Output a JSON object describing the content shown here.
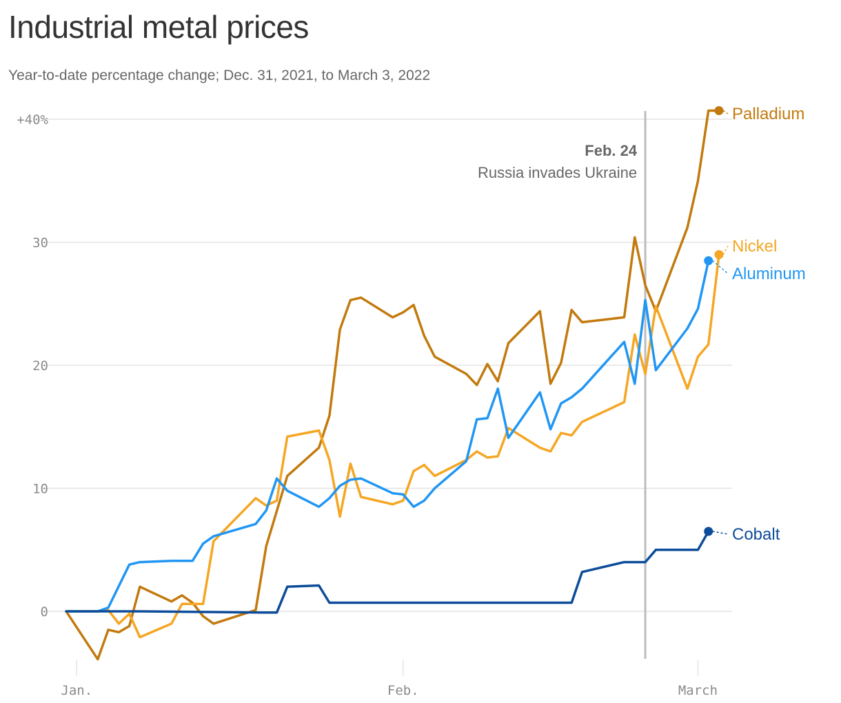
{
  "title": "Industrial metal prices",
  "subtitle": "Year-to-date percentage change; Dec. 31, 2021, to March 3, 2022",
  "colors": {
    "palladium": "#c27a0e",
    "nickel": "#f5a623",
    "aluminum": "#2196f3",
    "cobalt": "#0d4c9a",
    "grid": "#e3e3e3",
    "event_line": "#bdbdbd"
  },
  "chart_data": {
    "type": "line",
    "title": "Industrial metal prices",
    "subtitle": "Year-to-date percentage change; Dec. 31, 2021, to March 3, 2022",
    "ylim": [
      -4,
      40
    ],
    "yticks": [
      0,
      10,
      20,
      30,
      40
    ],
    "ytick_labels": [
      "0",
      "10",
      "20",
      "30",
      "+40%"
    ],
    "xlim": [
      "2021-12-31",
      "2022-03-03"
    ],
    "xticks": [
      "2022-01-01",
      "2022-02-01",
      "2022-03-01"
    ],
    "xtick_labels": [
      "Jan.",
      "Feb.",
      "March"
    ],
    "grid": true,
    "annotation": {
      "date": "2022-02-24",
      "label_date": "Feb. 24",
      "label_text": "Russia invades Ukraine"
    },
    "series": [
      {
        "name": "Palladium",
        "color": "#c27a0e",
        "points": [
          [
            "2021-12-31",
            0
          ],
          [
            "2022-01-03",
            -3.9
          ],
          [
            "2022-01-04",
            -1.5
          ],
          [
            "2022-01-05",
            -1.7
          ],
          [
            "2022-01-06",
            -1.2
          ],
          [
            "2022-01-07",
            2.0
          ],
          [
            "2022-01-10",
            0.8
          ],
          [
            "2022-01-11",
            1.3
          ],
          [
            "2022-01-12",
            0.7
          ],
          [
            "2022-01-13",
            -0.4
          ],
          [
            "2022-01-14",
            -1.0
          ],
          [
            "2022-01-18",
            0.1
          ],
          [
            "2022-01-19",
            5.3
          ],
          [
            "2022-01-21",
            11.0
          ],
          [
            "2022-01-24",
            13.3
          ],
          [
            "2022-01-25",
            15.9
          ],
          [
            "2022-01-26",
            22.9
          ],
          [
            "2022-01-27",
            25.3
          ],
          [
            "2022-01-28",
            25.5
          ],
          [
            "2022-01-31",
            23.9
          ],
          [
            "2022-02-01",
            24.3
          ],
          [
            "2022-02-02",
            24.9
          ],
          [
            "2022-02-03",
            22.4
          ],
          [
            "2022-02-04",
            20.7
          ],
          [
            "2022-02-07",
            19.3
          ],
          [
            "2022-02-08",
            18.4
          ],
          [
            "2022-02-09",
            20.1
          ],
          [
            "2022-02-10",
            18.7
          ],
          [
            "2022-02-11",
            21.8
          ],
          [
            "2022-02-14",
            24.4
          ],
          [
            "2022-02-15",
            18.5
          ],
          [
            "2022-02-16",
            20.2
          ],
          [
            "2022-02-17",
            24.5
          ],
          [
            "2022-02-18",
            23.5
          ],
          [
            "2022-02-22",
            23.9
          ],
          [
            "2022-02-23",
            30.4
          ],
          [
            "2022-02-24",
            26.5
          ],
          [
            "2022-02-25",
            24.4
          ],
          [
            "2022-02-28",
            31.2
          ],
          [
            "2022-03-01",
            35.0
          ],
          [
            "2022-03-02",
            40.7
          ],
          [
            "2022-03-03",
            40.7
          ]
        ]
      },
      {
        "name": "Nickel",
        "color": "#f5a623",
        "points": [
          [
            "2021-12-31",
            0
          ],
          [
            "2022-01-03",
            0
          ],
          [
            "2022-01-04",
            0.1
          ],
          [
            "2022-01-05",
            -1.0
          ],
          [
            "2022-01-06",
            -0.2
          ],
          [
            "2022-01-07",
            -2.1
          ],
          [
            "2022-01-10",
            -1.0
          ],
          [
            "2022-01-11",
            0.6
          ],
          [
            "2022-01-12",
            0.6
          ],
          [
            "2022-01-13",
            0.6
          ],
          [
            "2022-01-14",
            5.7
          ],
          [
            "2022-01-18",
            9.2
          ],
          [
            "2022-01-19",
            8.6
          ],
          [
            "2022-01-20",
            9.0
          ],
          [
            "2022-01-21",
            14.2
          ],
          [
            "2022-01-24",
            14.7
          ],
          [
            "2022-01-25",
            12.3
          ],
          [
            "2022-01-26",
            7.7
          ],
          [
            "2022-01-27",
            12.0
          ],
          [
            "2022-01-28",
            9.3
          ],
          [
            "2022-01-31",
            8.7
          ],
          [
            "2022-02-01",
            9.0
          ],
          [
            "2022-02-02",
            11.4
          ],
          [
            "2022-02-03",
            11.9
          ],
          [
            "2022-02-04",
            11.0
          ],
          [
            "2022-02-07",
            12.3
          ],
          [
            "2022-02-08",
            13.0
          ],
          [
            "2022-02-09",
            12.5
          ],
          [
            "2022-02-10",
            12.6
          ],
          [
            "2022-02-11",
            14.9
          ],
          [
            "2022-02-14",
            13.3
          ],
          [
            "2022-02-15",
            13.0
          ],
          [
            "2022-02-16",
            14.5
          ],
          [
            "2022-02-17",
            14.3
          ],
          [
            "2022-02-18",
            15.4
          ],
          [
            "2022-02-22",
            17.0
          ],
          [
            "2022-02-23",
            22.5
          ],
          [
            "2022-02-24",
            19.3
          ],
          [
            "2022-02-25",
            24.8
          ],
          [
            "2022-02-28",
            18.1
          ],
          [
            "2022-03-01",
            20.7
          ],
          [
            "2022-03-02",
            21.7
          ],
          [
            "2022-03-03",
            29.0
          ]
        ]
      },
      {
        "name": "Aluminum",
        "color": "#2196f3",
        "points": [
          [
            "2021-12-31",
            0
          ],
          [
            "2022-01-03",
            0
          ],
          [
            "2022-01-04",
            0.3
          ],
          [
            "2022-01-06",
            3.8
          ],
          [
            "2022-01-07",
            4.0
          ],
          [
            "2022-01-10",
            4.1
          ],
          [
            "2022-01-12",
            4.1
          ],
          [
            "2022-01-13",
            5.5
          ],
          [
            "2022-01-14",
            6.1
          ],
          [
            "2022-01-18",
            7.1
          ],
          [
            "2022-01-19",
            8.2
          ],
          [
            "2022-01-20",
            10.8
          ],
          [
            "2022-01-21",
            9.8
          ],
          [
            "2022-01-24",
            8.5
          ],
          [
            "2022-01-25",
            9.2
          ],
          [
            "2022-01-26",
            10.2
          ],
          [
            "2022-01-27",
            10.7
          ],
          [
            "2022-01-28",
            10.8
          ],
          [
            "2022-01-31",
            9.6
          ],
          [
            "2022-02-01",
            9.5
          ],
          [
            "2022-02-02",
            8.5
          ],
          [
            "2022-02-03",
            9.0
          ],
          [
            "2022-02-04",
            10.0
          ],
          [
            "2022-02-07",
            12.2
          ],
          [
            "2022-02-08",
            15.6
          ],
          [
            "2022-02-09",
            15.7
          ],
          [
            "2022-02-10",
            18.1
          ],
          [
            "2022-02-11",
            14.1
          ],
          [
            "2022-02-14",
            17.8
          ],
          [
            "2022-02-15",
            14.8
          ],
          [
            "2022-02-16",
            16.9
          ],
          [
            "2022-02-17",
            17.4
          ],
          [
            "2022-02-18",
            18.1
          ],
          [
            "2022-02-22",
            21.9
          ],
          [
            "2022-02-23",
            18.5
          ],
          [
            "2022-02-24",
            25.3
          ],
          [
            "2022-02-25",
            19.6
          ],
          [
            "2022-02-28",
            23.0
          ],
          [
            "2022-03-01",
            24.6
          ],
          [
            "2022-03-02",
            28.5
          ]
        ]
      },
      {
        "name": "Cobalt",
        "color": "#0d4c9a",
        "points": [
          [
            "2021-12-31",
            0
          ],
          [
            "2022-01-07",
            0
          ],
          [
            "2022-01-19",
            -0.1
          ],
          [
            "2022-01-20",
            -0.1
          ],
          [
            "2022-01-21",
            2.0
          ],
          [
            "2022-01-24",
            2.1
          ],
          [
            "2022-01-25",
            0.7
          ],
          [
            "2022-02-14",
            0.7
          ],
          [
            "2022-02-17",
            0.7
          ],
          [
            "2022-02-18",
            3.2
          ],
          [
            "2022-02-22",
            4.0
          ],
          [
            "2022-02-24",
            4.0
          ],
          [
            "2022-02-25",
            5.0
          ],
          [
            "2022-02-28",
            5.0
          ],
          [
            "2022-03-01",
            5.0
          ],
          [
            "2022-03-02",
            6.5
          ]
        ]
      }
    ]
  }
}
